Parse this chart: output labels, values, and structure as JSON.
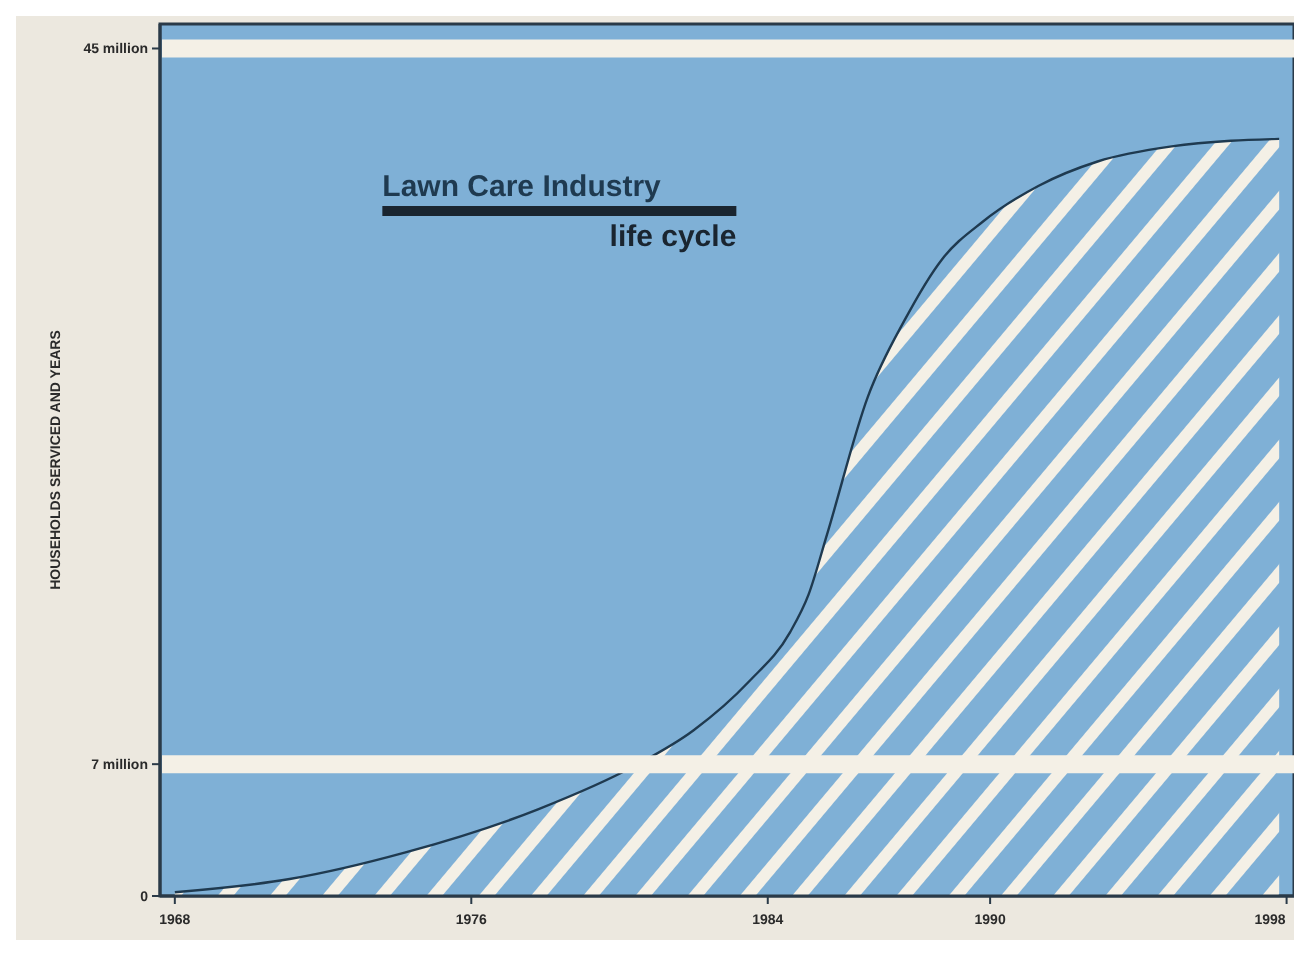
{
  "chart_data": {
    "type": "area",
    "title": "Lawn Care Industry",
    "subtitle": "life cycle",
    "ylabel": "HOUSEHOLDS SERVICED AND YEARS",
    "x": [
      1968,
      1971.1,
      1974.2,
      1977.8,
      1980.4,
      1982,
      1983.5,
      1984.6,
      1985.1,
      1985.6,
      1986.7,
      1987.7,
      1988.7,
      1989.8,
      1991.3,
      1992.9,
      1994.9,
      1996.5,
      1997.8
    ],
    "series": [
      {
        "color": "#f4f0e6",
        "values": [
          0.2,
          0.9,
          2.3,
          4.6,
          6.9,
          8.8,
          11.4,
          14,
          16,
          19.2,
          26.5,
          30.6,
          33.8,
          35.8,
          37.7,
          39,
          39.8,
          40.1,
          40.2
        ]
      }
    ],
    "xlim": [
      1967.6,
      1998.2
    ],
    "xticks": [
      1968,
      1976,
      1984,
      1990,
      1998
    ],
    "ylim": [
      0,
      46.3
    ],
    "yticks": [
      0,
      {
        "value": 7,
        "label": "7 million"
      },
      {
        "value": 45,
        "label": "45 million"
      }
    ],
    "ref_lines": [
      {
        "axis": "y",
        "value": 7,
        "color": "#f4f0e6"
      },
      {
        "axis": "y",
        "value": 45,
        "color": "#f4f0e6"
      }
    ],
    "grid": false
  }
}
